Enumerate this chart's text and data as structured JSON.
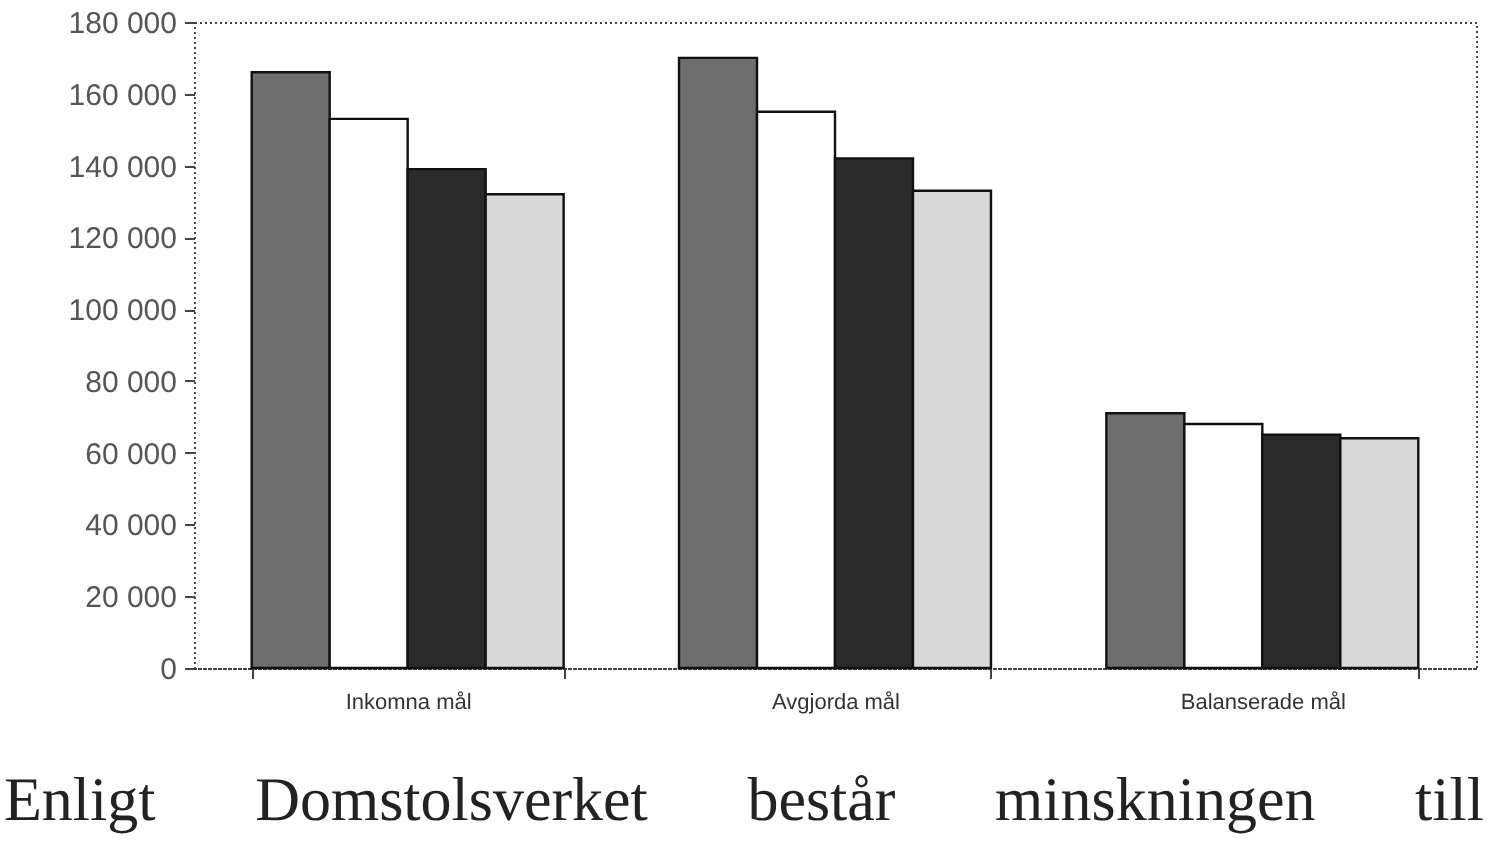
{
  "chart_data": {
    "type": "bar",
    "categories": [
      "Inkomna mål",
      "Avgjorda mål",
      "Balanserade mål"
    ],
    "series": [
      {
        "color": "#6e6e6e",
        "values": [
          166000,
          170000,
          71000
        ]
      },
      {
        "color": "#ffffff",
        "values": [
          153000,
          155000,
          68000
        ]
      },
      {
        "color": "#2a2a2a",
        "values": [
          139000,
          142000,
          65000
        ]
      },
      {
        "color": "#d8d8d8",
        "values": [
          132000,
          133000,
          64000
        ]
      }
    ],
    "ylim": [
      0,
      180000
    ],
    "yticks": [
      {
        "value": 0,
        "label": "0"
      },
      {
        "value": 20000,
        "label": "20 000"
      },
      {
        "value": 40000,
        "label": "40 000"
      },
      {
        "value": 60000,
        "label": "60 000"
      },
      {
        "value": 80000,
        "label": "80 000"
      },
      {
        "value": 100000,
        "label": "100 000"
      },
      {
        "value": 120000,
        "label": "120 000"
      },
      {
        "value": 140000,
        "label": "140 000"
      },
      {
        "value": 160000,
        "label": "160 000"
      },
      {
        "value": 180000,
        "label": "180 000"
      }
    ],
    "grid": false,
    "annotations": [
      "Enligt Domstolsverket består minskningen till"
    ]
  }
}
